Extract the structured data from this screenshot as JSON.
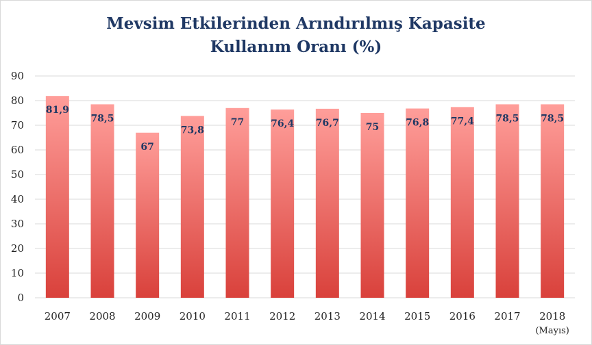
{
  "chart_data": {
    "type": "bar",
    "title_line1": "Mevsim Etkilerinden Arındırılmış Kapasite",
    "title_line2": "Kullanım Oranı (%)",
    "categories": [
      "2007",
      "2008",
      "2009",
      "2010",
      "2011",
      "2012",
      "2013",
      "2014",
      "2015",
      "2016",
      "2017",
      "2018"
    ],
    "category_sublabels": [
      "",
      "",
      "",
      "",
      "",
      "",
      "",
      "",
      "",
      "",
      "",
      "(Mayıs)"
    ],
    "values": [
      81.9,
      78.5,
      67,
      73.8,
      77,
      76.4,
      76.7,
      75,
      76.8,
      77.4,
      78.5,
      78.5
    ],
    "data_labels": [
      "81,9",
      "78,5",
      "67",
      "73,8",
      "77",
      "76,4",
      "76,7",
      "75",
      "76,8",
      "77,4",
      "78,5",
      "78,5"
    ],
    "ylim": [
      0,
      90
    ],
    "yticks": [
      0,
      10,
      20,
      30,
      40,
      50,
      60,
      70,
      80,
      90
    ],
    "grid": true,
    "legend": "none",
    "colors": {
      "bar_top": "#ff9e9a",
      "bar_bottom": "#d9413b",
      "title": "#1f3864",
      "data_label": "#1f3864",
      "grid": "#d9d9d9"
    }
  }
}
